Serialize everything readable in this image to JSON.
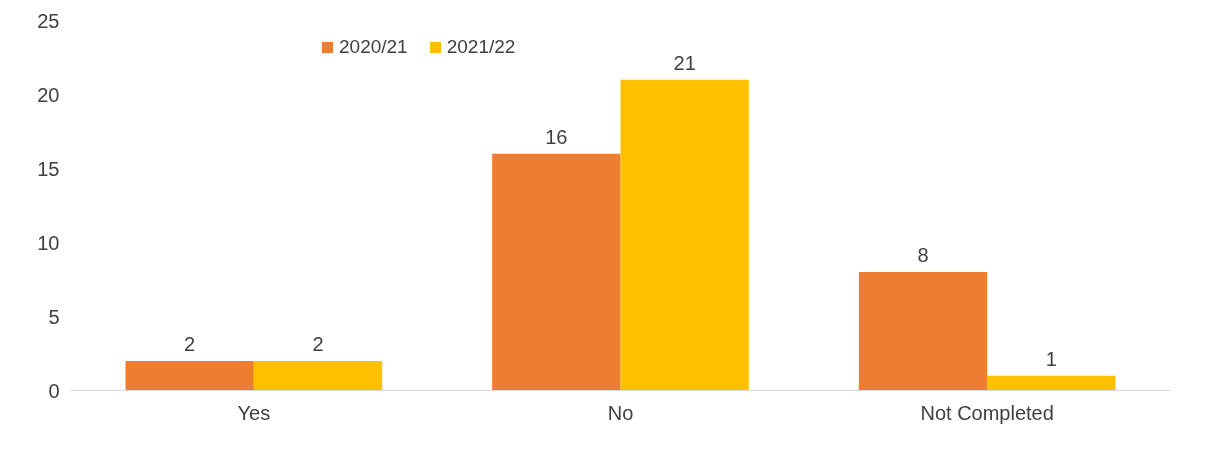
{
  "chart_data": {
    "type": "bar",
    "categories": [
      "Yes",
      "No",
      "Not Completed"
    ],
    "series": [
      {
        "name": "2020/21",
        "color": "#ed7d31",
        "values": [
          2,
          16,
          8
        ]
      },
      {
        "name": "2021/22",
        "color": "#ffc000",
        "values": [
          2,
          21,
          1
        ]
      }
    ],
    "ylim": [
      0,
      25
    ],
    "yticks": [
      0,
      5,
      10,
      15,
      20,
      25
    ],
    "data_labels": true,
    "legend": "top",
    "grid": false
  }
}
